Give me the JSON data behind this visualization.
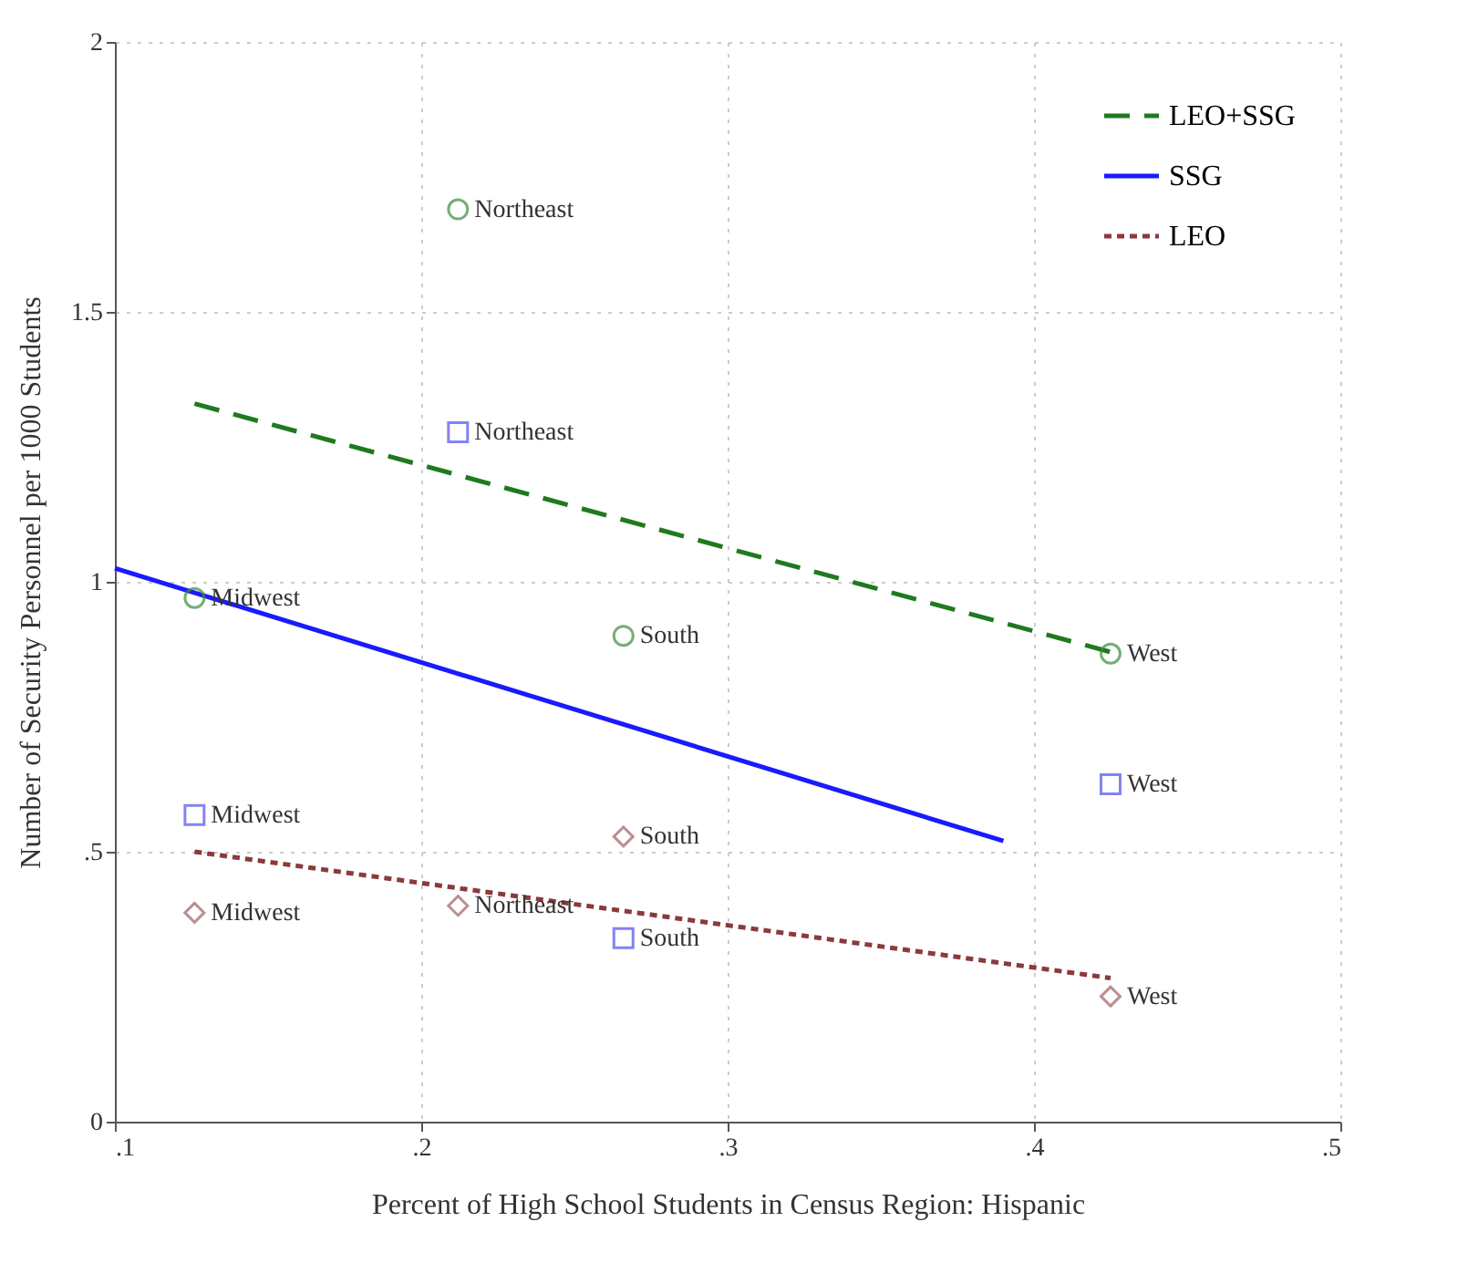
{
  "chart_data": {
    "type": "line",
    "xlabel": "Percent of High School Students in Census Region: Hispanic",
    "ylabel": "Number of Security Personnel per 1000 Students",
    "xlim": [
      0.1,
      0.5
    ],
    "ylim": [
      0,
      2
    ],
    "xticks": [
      {
        "value": 0.1,
        "label": ".1"
      },
      {
        "value": 0.2,
        "label": ".2"
      },
      {
        "value": 0.3,
        "label": ".3"
      },
      {
        "value": 0.4,
        "label": ".4"
      },
      {
        "value": 0.5,
        "label": ".5"
      }
    ],
    "yticks": [
      0,
      {
        "value": 0.5,
        "label": ".5"
      },
      1,
      1.5,
      2
    ],
    "grid": true,
    "legend": "top right",
    "series": [
      {
        "name": "LEO+SSG",
        "color": "#1f7a1f",
        "line_style": "dashed",
        "marker": "none",
        "x": [
          0.126,
          0.425
        ],
        "values": [
          1.33,
          0.87
        ]
      },
      {
        "name": "SSG",
        "color": "#1a1aff",
        "line_style": "solid",
        "marker": "none",
        "x": [
          0.1,
          0.39
        ],
        "values": [
          1.025,
          0.52
        ]
      },
      {
        "name": "LEO",
        "color": "#8b3a3a",
        "line_style": "dotted",
        "marker": "none",
        "x": [
          0.126,
          0.425
        ],
        "values": [
          0.5,
          0.266
        ]
      },
      {
        "type": "scatter",
        "color": "#3c8c3c",
        "marker": "circle",
        "x": [
          0.212,
          0.126,
          0.266,
          0.425
        ],
        "values": [
          1.69,
          0.97,
          0.9,
          0.867
        ],
        "value_labels": [
          "Northeast",
          "Midwest",
          "South",
          "West"
        ]
      },
      {
        "type": "scatter",
        "color": "#5050ee",
        "marker": "square",
        "x": [
          0.212,
          0.126,
          0.266,
          0.425
        ],
        "values": [
          1.277,
          0.568,
          0.34,
          0.625
        ],
        "value_labels": [
          "Northeast",
          "Midwest",
          "South",
          "West"
        ]
      },
      {
        "type": "scatter",
        "color": "#a06060",
        "marker": "diamond",
        "x": [
          0.212,
          0.126,
          0.266,
          0.425
        ],
        "values": [
          0.4,
          0.387,
          0.528,
          0.232
        ],
        "value_labels": [
          "Northeast",
          "Midwest",
          "South",
          "West"
        ]
      }
    ]
  }
}
